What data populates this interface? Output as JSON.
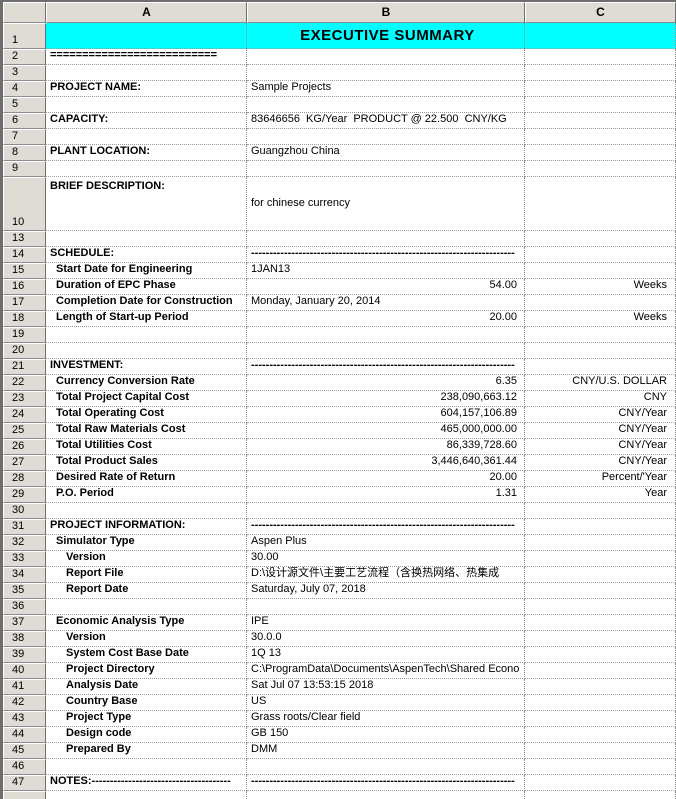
{
  "sheet": {
    "col_headers": [
      "A",
      "B",
      "C"
    ],
    "colors": {
      "title_bg": "#00FFFF",
      "header_bg": "#DFDCD5",
      "grid_dotted": "#9A9A9A",
      "col_break_line": "#7591AD",
      "text": "#000000"
    },
    "title": "EXECUTIVE SUMMARY",
    "rows": [
      {
        "n": "1",
        "h": 26,
        "type": "title",
        "b": "EXECUTIVE SUMMARY"
      },
      {
        "n": "2",
        "a": "=========================="
      },
      {
        "n": "3"
      },
      {
        "n": "4",
        "a": "PROJECT NAME:",
        "b": "Sample Projects"
      },
      {
        "n": "5"
      },
      {
        "n": "6",
        "a": "CAPACITY:",
        "b": "83646656  KG/Year  PRODUCT @ 22.500  CNY/KG"
      },
      {
        "n": "7"
      },
      {
        "n": "8",
        "a": "PLANT LOCATION:",
        "b": "Guangzhou China"
      },
      {
        "n": "9"
      },
      {
        "n": "10",
        "h": 54,
        "type": "desc",
        "a": "BRIEF DESCRIPTION:",
        "b": "for chinese currency"
      },
      {
        "n": "13"
      },
      {
        "n": "14",
        "a": "SCHEDULE:",
        "b": "------------------------------------------------------------------------",
        "bBold": true
      },
      {
        "n": "15",
        "a": "Start Date for Engineering",
        "indent": 1,
        "b": "1JAN13"
      },
      {
        "n": "16",
        "a": "Duration of EPC Phase",
        "indent": 1,
        "b": "54.00",
        "bRight": true,
        "c": "Weeks"
      },
      {
        "n": "17",
        "a": "Completion Date for Construction",
        "indent": 1,
        "b": "Monday, January 20, 2014"
      },
      {
        "n": "18",
        "a": "Length of Start-up Period",
        "indent": 1,
        "b": "20.00",
        "bRight": true,
        "c": "Weeks"
      },
      {
        "n": "19"
      },
      {
        "n": "20"
      },
      {
        "n": "21",
        "a": "INVESTMENT:",
        "b": "------------------------------------------------------------------------",
        "bBold": true
      },
      {
        "n": "22",
        "a": "Currency Conversion Rate",
        "indent": 1,
        "b": "6.35",
        "bRight": true,
        "c": "CNY/U.S. DOLLAR"
      },
      {
        "n": "23",
        "a": "Total Project Capital Cost",
        "indent": 1,
        "b": "238,090,663.12",
        "bRight": true,
        "c": "CNY"
      },
      {
        "n": "24",
        "a": "Total Operating Cost",
        "indent": 1,
        "b": "604,157,106.89",
        "bRight": true,
        "c": "CNY/Year"
      },
      {
        "n": "25",
        "a": "Total Raw Materials Cost",
        "indent": 1,
        "b": "465,000,000.00",
        "bRight": true,
        "c": "CNY/Year"
      },
      {
        "n": "26",
        "a": "Total Utilities Cost",
        "indent": 1,
        "b": "86,339,728.60",
        "bRight": true,
        "c": "CNY/Year"
      },
      {
        "n": "27",
        "a": "Total Product Sales",
        "indent": 1,
        "b": "3,446,640,361.44",
        "bRight": true,
        "c": "CNY/Year"
      },
      {
        "n": "28",
        "a": "Desired Rate of Return",
        "indent": 1,
        "b": "20.00",
        "bRight": true,
        "c": "Percent/'Year"
      },
      {
        "n": "29",
        "a": "P.O. Period",
        "indent": 1,
        "b": "1.31",
        "bRight": true,
        "c": "Year"
      },
      {
        "n": "30"
      },
      {
        "n": "31",
        "a": "PROJECT INFORMATION:",
        "b": "------------------------------------------------------------------------",
        "bBold": true
      },
      {
        "n": "32",
        "a": "Simulator Type",
        "indent": 1,
        "b": "Aspen Plus"
      },
      {
        "n": "33",
        "a": "Version",
        "indent": 2,
        "b": "30.00"
      },
      {
        "n": "34",
        "a": "Report File",
        "indent": 2,
        "b": "D:\\设计源文件\\主要工艺流程（含换热网络、热集成"
      },
      {
        "n": "35",
        "a": "Report Date",
        "indent": 2,
        "b": "Saturday, July 07, 2018"
      },
      {
        "n": "36"
      },
      {
        "n": "37",
        "a": "Economic Analysis Type",
        "indent": 1,
        "b": "IPE"
      },
      {
        "n": "38",
        "a": "Version",
        "indent": 2,
        "b": "30.0.0"
      },
      {
        "n": "39",
        "a": "System Cost Base Date",
        "indent": 2,
        "b": "1Q 13"
      },
      {
        "n": "40",
        "a": "Project Directory",
        "indent": 2,
        "b": "C:\\ProgramData\\Documents\\AspenTech\\Shared Econo"
      },
      {
        "n": "41",
        "a": "Analysis Date",
        "indent": 2,
        "b": "Sat Jul 07 13:53:15 2018"
      },
      {
        "n": "42",
        "a": "Country Base",
        "indent": 2,
        "b": "US"
      },
      {
        "n": "43",
        "a": "Project Type",
        "indent": 2,
        "b": "Grass roots/Clear field"
      },
      {
        "n": "44",
        "a": "Design code",
        "indent": 2,
        "b": "GB 150"
      },
      {
        "n": "45",
        "a": "Prepared By",
        "indent": 2,
        "b": "DMM"
      },
      {
        "n": "46"
      },
      {
        "n": "47",
        "a": "NOTES:--------------------------------------",
        "b": "------------------------------------------------------------------------",
        "bBold": true
      },
      {
        "h": 10,
        "type": "filler"
      }
    ]
  }
}
